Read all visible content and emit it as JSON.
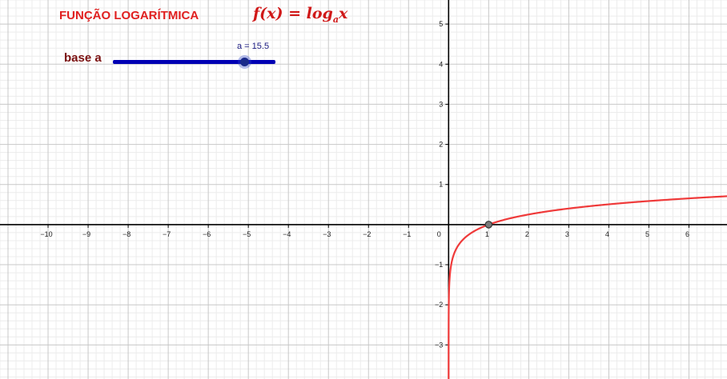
{
  "header": {
    "title": "FUNÇÃO LOGARÍTMICA",
    "formula_lhs": "f(x) = log",
    "formula_sub": "a",
    "formula_rhs": "x"
  },
  "slider": {
    "caption": "base a",
    "value_label": "a = 15.5",
    "value": 15.5
  },
  "axes": {
    "x_ticks": [
      "-10",
      "-9",
      "-8",
      "-7",
      "-6",
      "-5",
      "-4",
      "-3",
      "-2",
      "-1",
      "0",
      "1",
      "2",
      "3",
      "4",
      "5",
      "6"
    ],
    "x_values": [
      -10,
      -9,
      -8,
      -7,
      -6,
      -5,
      -4,
      -3,
      -2,
      -1,
      0,
      1,
      2,
      3,
      4,
      5,
      6
    ],
    "y_ticks": [
      "5",
      "4",
      "3",
      "2",
      "1",
      "-1",
      "-2",
      "-3"
    ],
    "y_values": [
      5,
      4,
      3,
      2,
      1,
      -1,
      -2,
      -3
    ]
  },
  "colors": {
    "curve": "#ef3a3a",
    "axis": "#000000",
    "major_grid": "#c8c8c8",
    "minor_grid": "#ececec",
    "slider_track": "#0000b4",
    "point_fill": "#7a7a7a"
  },
  "chart_data": {
    "type": "line",
    "function": "log_a(x)",
    "base": 15.5,
    "xlim": [
      -11.2,
      6.95
    ],
    "ylim": [
      -3.85,
      5.6
    ],
    "grid": true,
    "special_point": {
      "x": 1,
      "y": 0
    }
  }
}
